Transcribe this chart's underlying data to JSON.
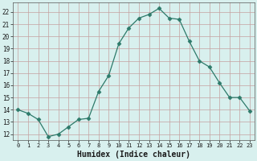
{
  "x": [
    0,
    1,
    2,
    3,
    4,
    5,
    6,
    7,
    8,
    9,
    10,
    11,
    12,
    13,
    14,
    15,
    16,
    17,
    18,
    19,
    20,
    21,
    22,
    23
  ],
  "y": [
    14.0,
    13.7,
    13.2,
    11.8,
    12.0,
    12.6,
    13.2,
    13.3,
    15.5,
    16.8,
    19.4,
    20.7,
    21.5,
    21.8,
    22.3,
    21.5,
    21.4,
    19.6,
    18.0,
    17.5,
    16.2,
    15.0,
    15.0,
    13.9
  ],
  "line_color": "#2d7a6a",
  "marker": "D",
  "marker_size": 2.5,
  "bg_color": "#d8f0ee",
  "grid_color": "#c4a0a0",
  "xlabel": "Humidex (Indice chaleur)",
  "xlabel_fontsize": 7,
  "xlim": [
    -0.5,
    23.5
  ],
  "ylim": [
    11.5,
    22.8
  ],
  "xticks": [
    0,
    1,
    2,
    3,
    4,
    5,
    6,
    7,
    8,
    9,
    10,
    11,
    12,
    13,
    14,
    15,
    16,
    17,
    18,
    19,
    20,
    21,
    22,
    23
  ],
  "yticks": [
    12,
    13,
    14,
    15,
    16,
    17,
    18,
    19,
    20,
    21,
    22
  ]
}
